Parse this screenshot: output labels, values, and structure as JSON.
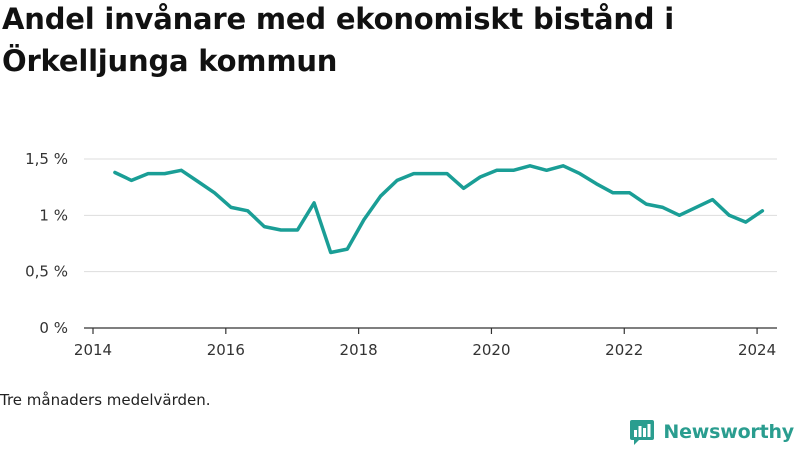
{
  "title": "Andel invånare med ekonomiskt bistånd i Örkelljunga kommun",
  "note": "Tre månaders medelvärden.",
  "brand": {
    "name": "Newsworthy",
    "logo_icon": "bar-chart-speech-bubble-icon",
    "color": "#2a9d8f"
  },
  "colors": {
    "line": "#1a9e96",
    "grid": "#dddddd",
    "axis": "#333333"
  },
  "chart_data": {
    "type": "line",
    "title": "Andel invånare med ekonomiskt bistånd i Örkelljunga kommun",
    "xlabel": "",
    "ylabel": "",
    "xlim": [
      2014.0,
      2024.3
    ],
    "ylim": [
      0,
      1.5
    ],
    "x_ticks": [
      2014,
      2016,
      2018,
      2020,
      2022,
      2024
    ],
    "x_tick_labels": [
      "2014",
      "2016",
      "2018",
      "2020",
      "2022",
      "2024"
    ],
    "y_ticks": [
      0,
      0.5,
      1,
      1.5
    ],
    "y_tick_labels": [
      "0 %",
      "0,5 %",
      "1 %",
      "1,5 %"
    ],
    "grid": true,
    "legend": "none",
    "series": [
      {
        "x": [
          2014.33,
          2014.58,
          2014.83,
          2015.08,
          2015.33,
          2015.58,
          2015.83,
          2016.08,
          2016.33,
          2016.58,
          2016.83,
          2017.08,
          2017.33,
          2017.58,
          2017.83,
          2018.08,
          2018.33,
          2018.58,
          2018.83,
          2019.08,
          2019.33,
          2019.58,
          2019.83,
          2020.08,
          2020.33,
          2020.58,
          2020.83,
          2021.08,
          2021.33,
          2021.58,
          2021.83,
          2022.08,
          2022.33,
          2022.58,
          2022.83,
          2023.08,
          2023.33,
          2023.58,
          2023.83,
          2024.08
        ],
        "y": [
          1.38,
          1.31,
          1.37,
          1.37,
          1.4,
          1.3,
          1.2,
          1.07,
          1.04,
          0.9,
          0.87,
          0.87,
          1.11,
          0.67,
          0.7,
          0.96,
          1.17,
          1.31,
          1.37,
          1.37,
          1.37,
          1.24,
          1.34,
          1.4,
          1.4,
          1.44,
          1.4,
          1.44,
          1.37,
          1.28,
          1.2,
          1.2,
          1.1,
          1.07,
          1.0,
          1.07,
          1.14,
          1.0,
          0.94,
          1.04
        ]
      }
    ]
  }
}
